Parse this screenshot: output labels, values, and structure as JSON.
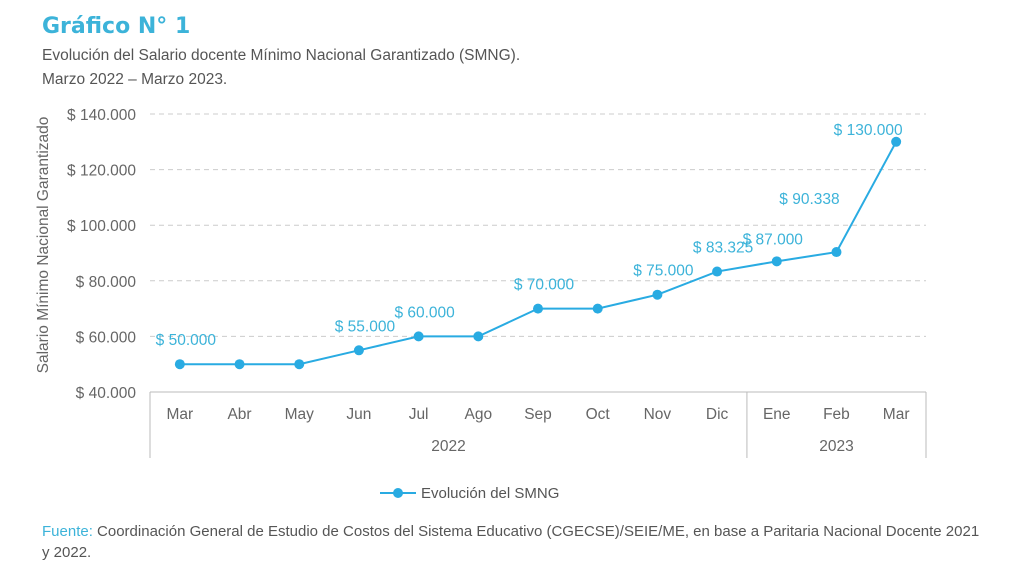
{
  "header": {
    "title": "Gráfico N° 1",
    "subtitle_line1": "Evolución del Salario docente Mínimo Nacional Garantizado (SMNG).",
    "subtitle_line2": "Marzo 2022 – Marzo 2023."
  },
  "source": {
    "label": "Fuente:",
    "text": " Coordinación General de Estudio de Costos del Sistema Educativo (CGECSE)/SEIE/ME, en base a Paritaria Nacional Docente 2021 y 2022."
  },
  "colors": {
    "accent": "#29ABE2",
    "title": "#3CB3D9",
    "grid": "#CCCCCC"
  },
  "chart_data": {
    "type": "line",
    "ylabel": "Salario Mínimo Nacional Garantizado",
    "ylim": [
      40000,
      140000
    ],
    "yticks": [
      40000,
      60000,
      80000,
      100000,
      120000,
      140000
    ],
    "ytick_labels": [
      "$ 40.000",
      "$ 60.000",
      "$ 80.000",
      "$ 100.000",
      "$ 120.000",
      "$ 140.000"
    ],
    "categories": [
      "Mar",
      "Abr",
      "May",
      "Jun",
      "Jul",
      "Ago",
      "Sep",
      "Oct",
      "Nov",
      "Dic",
      "Ene",
      "Feb",
      "Mar"
    ],
    "year_groups": [
      {
        "label": "2022",
        "from": 0,
        "to": 9
      },
      {
        "label": "2023",
        "from": 10,
        "to": 12
      }
    ],
    "series": [
      {
        "name": "Evolución del SMNG",
        "values": [
          50000,
          50000,
          50000,
          55000,
          60000,
          60000,
          70000,
          70000,
          75000,
          83325,
          87000,
          90338,
          130000
        ]
      }
    ],
    "data_labels": [
      {
        "index": 0,
        "text": "$ 50.000"
      },
      {
        "index": 3,
        "text": "$ 55.000"
      },
      {
        "index": 4,
        "text": "$ 60.000"
      },
      {
        "index": 6,
        "text": "$ 70.000"
      },
      {
        "index": 8,
        "text": "$ 75.000"
      },
      {
        "index": 9,
        "text": "$ 83.325"
      },
      {
        "index": 10,
        "text": "$ 87.000"
      },
      {
        "index": 11,
        "text": "$ 90.338"
      },
      {
        "index": 12,
        "text": "$ 130.000"
      }
    ],
    "grid": true,
    "legend": "bottom-center"
  }
}
